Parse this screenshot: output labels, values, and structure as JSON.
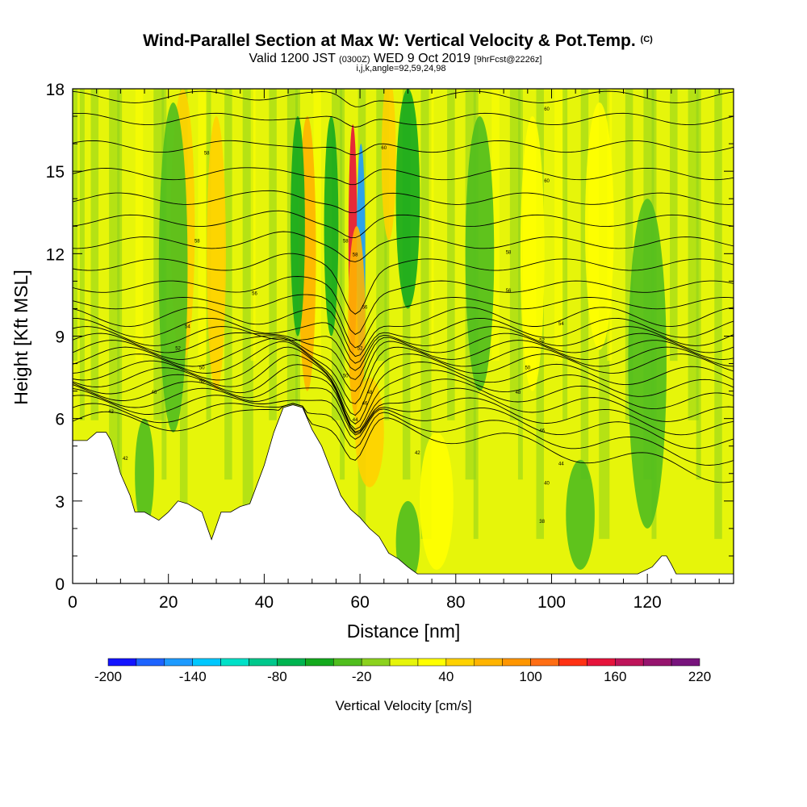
{
  "chart_data": {
    "type": "heatmap",
    "title": "Wind-Parallel Section at Max W: Vertical Velocity & Pot.Temp.",
    "title_unit_tag": "(C)",
    "subtitle_main_a": "Valid 1200 JST",
    "subtitle_small_a": "(0300Z)",
    "subtitle_main_b": "WED 9 Oct 2019",
    "subtitle_small_b": "[9hrFcst@2226z]",
    "subtitle2": "i,j,k,angle=92,59,24,98",
    "xlabel": "Distance [nm]",
    "ylabel": "Height [Kft MSL]",
    "xlim": [
      0,
      138
    ],
    "ylim": [
      0,
      18
    ],
    "x_ticks": [
      0,
      20,
      40,
      60,
      80,
      100,
      120
    ],
    "x_tick_labels": [
      "0",
      "20",
      "40",
      "60",
      "80",
      "100",
      "120"
    ],
    "y_ticks": [
      0,
      3,
      6,
      9,
      12,
      15,
      18
    ],
    "y_tick_labels": [
      "0",
      "3",
      "6",
      "9",
      "12",
      "15",
      "18"
    ],
    "grid": false,
    "colorbar": {
      "title": "Vertical Velocity [cm/s]",
      "min": -200,
      "max": 220,
      "step": 20,
      "tick_values": [
        -200,
        -140,
        -80,
        -20,
        40,
        100,
        160,
        220
      ],
      "tick_labels": [
        "-200",
        "-140",
        "-80",
        "-20",
        "40",
        "100",
        "160",
        "220"
      ],
      "colors": [
        "#1414ff",
        "#1e64ff",
        "#1e9bff",
        "#00c8ff",
        "#00e1c8",
        "#00c88c",
        "#00b450",
        "#14aa1e",
        "#50be1e",
        "#8cd21e",
        "#e6f50a",
        "#ffff00",
        "#ffd200",
        "#ffb400",
        "#ff9600",
        "#ff6e14",
        "#ff3214",
        "#e6143c",
        "#be145a",
        "#96146e",
        "#78147d"
      ]
    },
    "terrain_profile": {
      "distance_nm": [
        0,
        3,
        5,
        7,
        8,
        10,
        12,
        13,
        15,
        18,
        20,
        22,
        24,
        27,
        29,
        31,
        33,
        35,
        37,
        40,
        42,
        44,
        46,
        48,
        50,
        52,
        54,
        56,
        58,
        60,
        62,
        64,
        66,
        68,
        70,
        72,
        76,
        80,
        85,
        90,
        100,
        110,
        118,
        121,
        123,
        124,
        125,
        126,
        128,
        138
      ],
      "height_kft": [
        5.2,
        5.2,
        5.5,
        5.5,
        5.2,
        4.0,
        3.2,
        2.6,
        2.6,
        2.3,
        2.6,
        3.0,
        2.9,
        2.6,
        1.6,
        2.6,
        2.6,
        2.8,
        2.9,
        4.3,
        5.5,
        6.4,
        6.5,
        6.4,
        5.6,
        5.0,
        4.1,
        3.2,
        2.7,
        2.4,
        2.0,
        1.7,
        1.1,
        0.9,
        0.6,
        0.35,
        0.35,
        0.35,
        0.35,
        0.35,
        0.35,
        0.35,
        0.35,
        0.6,
        1.0,
        1.0,
        0.7,
        0.35,
        0.35,
        0.35
      ]
    },
    "velocity_features": [
      {
        "distance_nm": 58.5,
        "height_kft": 12.5,
        "width_nm": 0.9,
        "height_span_kft": 4.2,
        "vertical_velocity_cm_s": 150
      },
      {
        "distance_nm": 60.2,
        "height_kft": 12.0,
        "width_nm": 0.9,
        "height_span_kft": 4.0,
        "vertical_velocity_cm_s": -150
      },
      {
        "distance_nm": 59.3,
        "height_kft": 9.5,
        "width_nm": 1.8,
        "height_span_kft": 3.5,
        "vertical_velocity_cm_s": 60
      },
      {
        "distance_nm": 49.0,
        "height_kft": 12.0,
        "width_nm": 1.8,
        "height_span_kft": 5.0,
        "vertical_velocity_cm_s": 60
      },
      {
        "distance_nm": 47.0,
        "height_kft": 13.0,
        "width_nm": 1.5,
        "height_span_kft": 4.0,
        "vertical_velocity_cm_s": -50
      },
      {
        "distance_nm": 54.0,
        "height_kft": 13.0,
        "width_nm": 1.5,
        "height_span_kft": 4.0,
        "vertical_velocity_cm_s": -45
      },
      {
        "distance_nm": 70.0,
        "height_kft": 14.0,
        "width_nm": 2.5,
        "height_span_kft": 4.0,
        "vertical_velocity_cm_s": -60
      },
      {
        "distance_nm": 66.0,
        "height_kft": 15.5,
        "width_nm": 1.5,
        "height_span_kft": 3.0,
        "vertical_velocity_cm_s": 50
      },
      {
        "distance_nm": 23.0,
        "height_kft": 13.0,
        "width_nm": 2.5,
        "height_span_kft": 5.0,
        "vertical_velocity_cm_s": 50
      },
      {
        "distance_nm": 30.0,
        "height_kft": 12.0,
        "width_nm": 2.0,
        "height_span_kft": 5.0,
        "vertical_velocity_cm_s": 40
      },
      {
        "distance_nm": 21.0,
        "height_kft": 11.5,
        "width_nm": 3.0,
        "height_span_kft": 6.0,
        "vertical_velocity_cm_s": -35
      },
      {
        "distance_nm": 85.0,
        "height_kft": 12.0,
        "width_nm": 3.0,
        "height_span_kft": 5.0,
        "vertical_velocity_cm_s": -30
      },
      {
        "distance_nm": 110.0,
        "height_kft": 13.0,
        "width_nm": 3.0,
        "height_span_kft": 4.5,
        "vertical_velocity_cm_s": 30
      },
      {
        "distance_nm": 96.0,
        "height_kft": 12.0,
        "width_nm": 2.5,
        "height_span_kft": 5.0,
        "vertical_velocity_cm_s": 25
      },
      {
        "distance_nm": 120.0,
        "height_kft": 8.0,
        "width_nm": 4.0,
        "height_span_kft": 6.0,
        "vertical_velocity_cm_s": -25
      },
      {
        "distance_nm": 62.0,
        "height_kft": 5.5,
        "width_nm": 3.0,
        "height_span_kft": 2.0,
        "vertical_velocity_cm_s": 40
      },
      {
        "distance_nm": 76.0,
        "height_kft": 3.0,
        "width_nm": 3.5,
        "height_span_kft": 2.5,
        "vertical_velocity_cm_s": 35
      },
      {
        "distance_nm": 70.0,
        "height_kft": 1.5,
        "width_nm": 2.5,
        "height_span_kft": 1.5,
        "vertical_velocity_cm_s": -35
      },
      {
        "distance_nm": 15.0,
        "height_kft": 4.0,
        "width_nm": 2.0,
        "height_span_kft": 2.0,
        "vertical_velocity_cm_s": -40
      },
      {
        "distance_nm": 106.0,
        "height_kft": 2.5,
        "width_nm": 3.0,
        "height_span_kft": 2.0,
        "vertical_velocity_cm_s": -25
      }
    ],
    "background_vertical_velocity_cm_s": 10,
    "isentropes": {
      "lower_spacing_kft": [
        5.9,
        6.2,
        6.5,
        6.75,
        7.0,
        7.25,
        7.5,
        7.75,
        8.0,
        8.25,
        8.5,
        8.75,
        9.0,
        9.3,
        9.7,
        10.2,
        10.8,
        11.6,
        12.4,
        13.2,
        14.0,
        14.9,
        15.9,
        16.9,
        17.7
      ],
      "labels": [
        {
          "text": "42",
          "distance_nm": 8,
          "height_kft": 6.2
        },
        {
          "text": "42",
          "distance_nm": 11,
          "height_kft": 4.5
        },
        {
          "text": "46",
          "distance_nm": 17,
          "height_kft": 6.9
        },
        {
          "text": "50",
          "distance_nm": 27,
          "height_kft": 7.3
        },
        {
          "text": "50",
          "distance_nm": 27,
          "height_kft": 7.8
        },
        {
          "text": "52",
          "distance_nm": 22,
          "height_kft": 8.5
        },
        {
          "text": "54",
          "distance_nm": 24,
          "height_kft": 9.3
        },
        {
          "text": "56",
          "distance_nm": 38,
          "height_kft": 10.5
        },
        {
          "text": "58",
          "distance_nm": 26,
          "height_kft": 12.4
        },
        {
          "text": "58",
          "distance_nm": 28,
          "height_kft": 15.6
        },
        {
          "text": "60",
          "distance_nm": 65,
          "height_kft": 15.8
        },
        {
          "text": "58",
          "distance_nm": 57,
          "height_kft": 12.4
        },
        {
          "text": "58",
          "distance_nm": 59,
          "height_kft": 11.9
        },
        {
          "text": "56",
          "distance_nm": 61,
          "height_kft": 10.0
        },
        {
          "text": "52",
          "distance_nm": 60,
          "height_kft": 8.5
        },
        {
          "text": "50",
          "distance_nm": 57,
          "height_kft": 7.5
        },
        {
          "text": "48",
          "distance_nm": 62,
          "height_kft": 6.9
        },
        {
          "text": "46",
          "distance_nm": 61,
          "height_kft": 6.5
        },
        {
          "text": "44",
          "distance_nm": 59,
          "height_kft": 5.9
        },
        {
          "text": "42",
          "distance_nm": 72,
          "height_kft": 4.7
        },
        {
          "text": "56",
          "distance_nm": 91,
          "height_kft": 10.6
        },
        {
          "text": "58",
          "distance_nm": 91,
          "height_kft": 12.0
        },
        {
          "text": "60",
          "distance_nm": 99,
          "height_kft": 14.6
        },
        {
          "text": "60",
          "distance_nm": 99,
          "height_kft": 17.2
        },
        {
          "text": "54",
          "distance_nm": 102,
          "height_kft": 9.4
        },
        {
          "text": "52",
          "distance_nm": 98,
          "height_kft": 8.8
        },
        {
          "text": "50",
          "distance_nm": 95,
          "height_kft": 7.8
        },
        {
          "text": "48",
          "distance_nm": 93,
          "height_kft": 6.9
        },
        {
          "text": "46",
          "distance_nm": 98,
          "height_kft": 5.5
        },
        {
          "text": "44",
          "distance_nm": 102,
          "height_kft": 4.3
        },
        {
          "text": "40",
          "distance_nm": 99,
          "height_kft": 3.6
        },
        {
          "text": "38",
          "distance_nm": 98,
          "height_kft": 2.2
        }
      ]
    }
  }
}
